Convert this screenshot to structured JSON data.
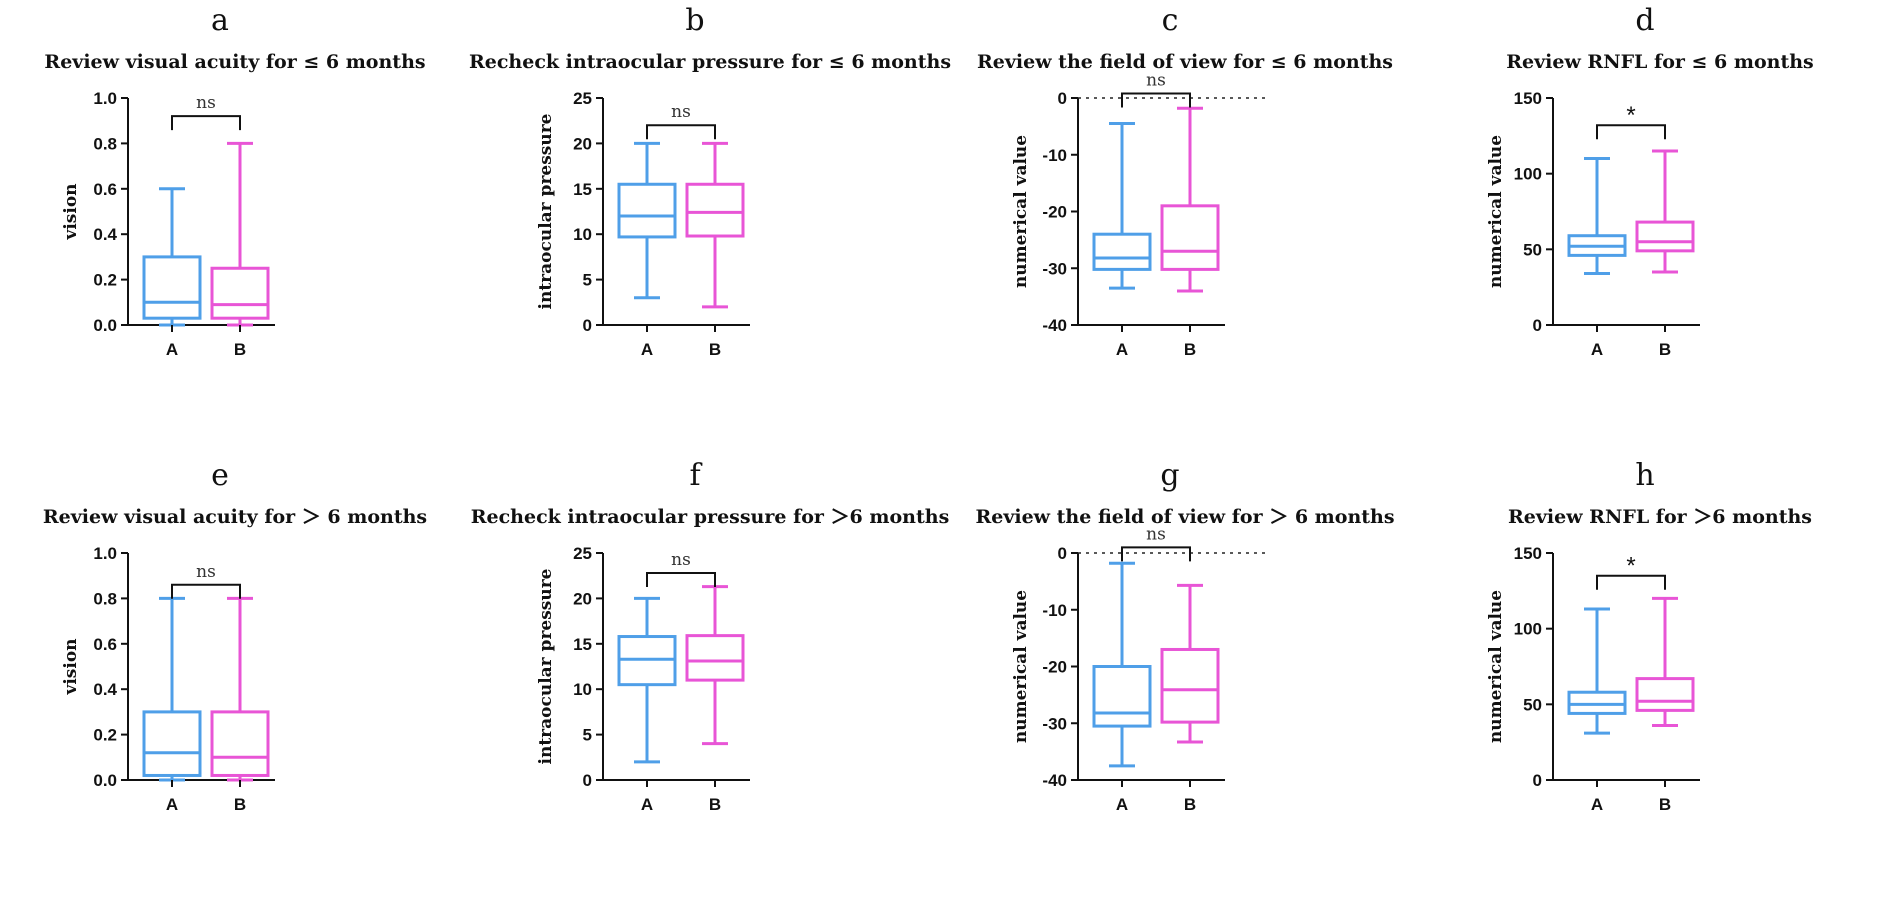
{
  "chart_data": [
    {
      "type": "box",
      "panel": "a",
      "title": "Review visual acuity for ≤ 6 months",
      "ylabel": "vision",
      "ylim": [
        0,
        1.0
      ],
      "yticks": [
        "0.0",
        "0.2",
        "0.4",
        "0.6",
        "0.8",
        "1.0"
      ],
      "yticks_values": [
        0,
        0.2,
        0.4,
        0.6,
        0.8,
        1.0
      ],
      "categories": [
        "A",
        "B"
      ],
      "boxes": [
        {
          "name": "A",
          "min": 0.0,
          "q1": 0.03,
          "median": 0.1,
          "q3": 0.3,
          "max": 0.6,
          "color": "#4f9fe8"
        },
        {
          "name": "B",
          "min": 0.0,
          "q1": 0.03,
          "median": 0.09,
          "q3": 0.25,
          "max": 0.8,
          "color": "#e855d6"
        }
      ],
      "significance": "ns",
      "sig_y": 0.92,
      "ref_line": false
    },
    {
      "type": "box",
      "panel": "b",
      "title": "Recheck intraocular pressure for ≤ 6 months",
      "ylabel": "intraocular pressure",
      "ylim": [
        0,
        25
      ],
      "yticks": [
        "0",
        "5",
        "10",
        "15",
        "20",
        "25"
      ],
      "yticks_values": [
        0,
        5,
        10,
        15,
        20,
        25
      ],
      "categories": [
        "A",
        "B"
      ],
      "boxes": [
        {
          "name": "A",
          "min": 3,
          "q1": 9.7,
          "median": 12,
          "q3": 15.5,
          "max": 20,
          "color": "#4f9fe8"
        },
        {
          "name": "B",
          "min": 2,
          "q1": 9.8,
          "median": 12.4,
          "q3": 15.5,
          "max": 20,
          "color": "#e855d6"
        }
      ],
      "significance": "ns",
      "sig_y": 22,
      "ref_line": false
    },
    {
      "type": "box",
      "panel": "c",
      "title": "Review the field of view for ≤ 6 months",
      "ylabel": "numerical value",
      "ylim": [
        -40,
        0
      ],
      "yticks": [
        "-40",
        "-30",
        "-20",
        "-10",
        "0"
      ],
      "yticks_values": [
        -40,
        -30,
        -20,
        -10,
        0
      ],
      "categories": [
        "A",
        "B"
      ],
      "boxes": [
        {
          "name": "A",
          "min": -33.5,
          "q1": -30.2,
          "median": -28.2,
          "q3": -24,
          "max": -4.5,
          "color": "#4f9fe8"
        },
        {
          "name": "B",
          "min": -34,
          "q1": -30.2,
          "median": -27,
          "q3": -19,
          "max": -1.8,
          "color": "#e855d6"
        }
      ],
      "significance": "ns",
      "sig_y": 0.8,
      "ref_line": true
    },
    {
      "type": "box",
      "panel": "d",
      "title": "Review RNFL for ≤ 6 months",
      "ylabel": "numerical value",
      "ylim": [
        0,
        150
      ],
      "yticks": [
        "0",
        "50",
        "100",
        "150"
      ],
      "yticks_values": [
        0,
        50,
        100,
        150
      ],
      "categories": [
        "A",
        "B"
      ],
      "boxes": [
        {
          "name": "A",
          "min": 34,
          "q1": 46,
          "median": 52,
          "q3": 59,
          "max": 110,
          "color": "#4f9fe8"
        },
        {
          "name": "B",
          "min": 35,
          "q1": 49,
          "median": 55,
          "q3": 68,
          "max": 115,
          "color": "#e855d6"
        }
      ],
      "significance": "*",
      "sig_y": 132,
      "ref_line": false
    },
    {
      "type": "box",
      "panel": "e",
      "title": "Review visual acuity for ＞ 6 months",
      "ylabel": "vision",
      "ylim": [
        0,
        1.0
      ],
      "yticks": [
        "0.0",
        "0.2",
        "0.4",
        "0.6",
        "0.8",
        "1.0"
      ],
      "yticks_values": [
        0,
        0.2,
        0.4,
        0.6,
        0.8,
        1.0
      ],
      "categories": [
        "A",
        "B"
      ],
      "boxes": [
        {
          "name": "A",
          "min": 0.0,
          "q1": 0.02,
          "median": 0.12,
          "q3": 0.3,
          "max": 0.8,
          "color": "#4f9fe8"
        },
        {
          "name": "B",
          "min": 0.0,
          "q1": 0.02,
          "median": 0.1,
          "q3": 0.3,
          "max": 0.8,
          "color": "#e855d6"
        }
      ],
      "significance": "ns",
      "sig_y": 0.86,
      "ref_line": false
    },
    {
      "type": "box",
      "panel": "f",
      "title": "Recheck intraocular pressure for ＞6 months",
      "ylabel": "intraocular pressure",
      "ylim": [
        0,
        25
      ],
      "yticks": [
        "0",
        "5",
        "10",
        "15",
        "20",
        "25"
      ],
      "yticks_values": [
        0,
        5,
        10,
        15,
        20,
        25
      ],
      "categories": [
        "A",
        "B"
      ],
      "boxes": [
        {
          "name": "A",
          "min": 2,
          "q1": 10.5,
          "median": 13.3,
          "q3": 15.8,
          "max": 20,
          "color": "#4f9fe8"
        },
        {
          "name": "B",
          "min": 4,
          "q1": 11,
          "median": 13.1,
          "q3": 15.9,
          "max": 21.3,
          "color": "#e855d6"
        }
      ],
      "significance": "ns",
      "sig_y": 22.8,
      "ref_line": false
    },
    {
      "type": "box",
      "panel": "g",
      "title": "Review the field of view for ＞ 6 months",
      "ylabel": "numerical value",
      "ylim": [
        -40,
        0
      ],
      "yticks": [
        "-40",
        "-30",
        "-20",
        "-10",
        "0"
      ],
      "yticks_values": [
        -40,
        -30,
        -20,
        -10,
        0
      ],
      "categories": [
        "A",
        "B"
      ],
      "boxes": [
        {
          "name": "A",
          "min": -37.5,
          "q1": -30.5,
          "median": -28.2,
          "q3": -20,
          "max": -1.8,
          "color": "#4f9fe8"
        },
        {
          "name": "B",
          "min": -33.3,
          "q1": -29.8,
          "median": -24.1,
          "q3": -17,
          "max": -5.7,
          "color": "#e855d6"
        }
      ],
      "significance": "ns",
      "sig_y": 1.0,
      "ref_line": true
    },
    {
      "type": "box",
      "panel": "h",
      "title": "Review RNFL for ＞6 months",
      "ylabel": "numerical value",
      "ylim": [
        0,
        150
      ],
      "yticks": [
        "0",
        "50",
        "100",
        "150"
      ],
      "yticks_values": [
        0,
        50,
        100,
        150
      ],
      "categories": [
        "A",
        "B"
      ],
      "boxes": [
        {
          "name": "A",
          "min": 31,
          "q1": 44,
          "median": 50,
          "q3": 58,
          "max": 113,
          "color": "#4f9fe8"
        },
        {
          "name": "B",
          "min": 36,
          "q1": 46,
          "median": 52,
          "q3": 67,
          "max": 120,
          "color": "#e855d6"
        }
      ],
      "significance": "*",
      "sig_y": 135,
      "ref_line": false
    }
  ]
}
